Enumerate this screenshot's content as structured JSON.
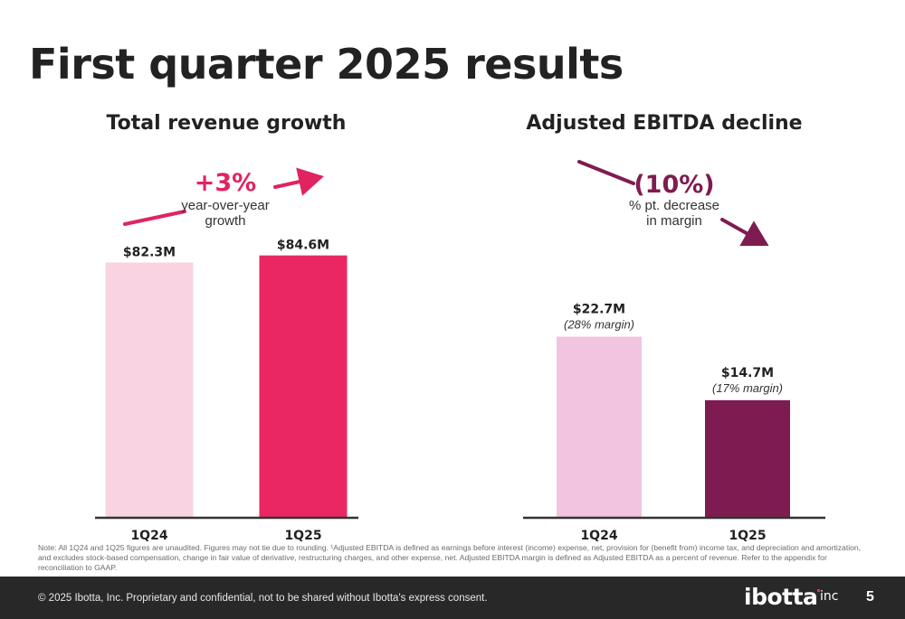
{
  "slide": {
    "title": "First quarter 2025 results",
    "note": "Note: All 1Q24 and 1Q25 figures are unaudited. Figures may not tie due to rounding. ¹Adjusted EBITDA is defined as earnings before interest (income) expense, net, provision for (benefit from) income tax, and depreciation and amortization, and excludes stock-based compensation, change in fair value of derivative, restructuring charges, and other expense, net. Adjusted EBITDA margin is defined as Adjusted EBITDA as a percent of revenue. Refer to the appendix for reconciliation to GAAP.",
    "footer": {
      "copyright": "© 2025 Ibotta, Inc. Proprietary and confidential, not to be shared without Ibotta's express consent.",
      "logo_text": "ibotta",
      "logo_suffix": "inc",
      "page_number": "5"
    }
  },
  "chart_data": [
    {
      "type": "bar",
      "title": "Total revenue growth",
      "categories": [
        "1Q24",
        "1Q25"
      ],
      "values": [
        82.3,
        84.6
      ],
      "data_labels": [
        "$82.3M",
        "$84.6M"
      ],
      "colors": [
        "#f9d3e1",
        "#ea2763"
      ],
      "ylim": [
        0,
        100
      ],
      "grid": false,
      "annotation": {
        "value": "+3%",
        "line1": "year-over-year",
        "line2": "growth",
        "color": "#e02460",
        "direction": "up"
      }
    },
    {
      "type": "bar",
      "title": "Adjusted EBITDA decline",
      "categories": [
        "1Q24",
        "1Q25"
      ],
      "values": [
        22.7,
        14.7
      ],
      "data_labels": [
        "$22.7M",
        "$14.7M"
      ],
      "sub_labels": [
        "(28% margin)",
        "(17% margin)"
      ],
      "colors": [
        "#f2c4df",
        "#7e1c51"
      ],
      "ylim": [
        0,
        28
      ],
      "grid": false,
      "annotation": {
        "value": "(10%)",
        "line1": "% pt. decrease",
        "line2": "in margin",
        "color": "#7e1c51",
        "direction": "down"
      }
    }
  ]
}
